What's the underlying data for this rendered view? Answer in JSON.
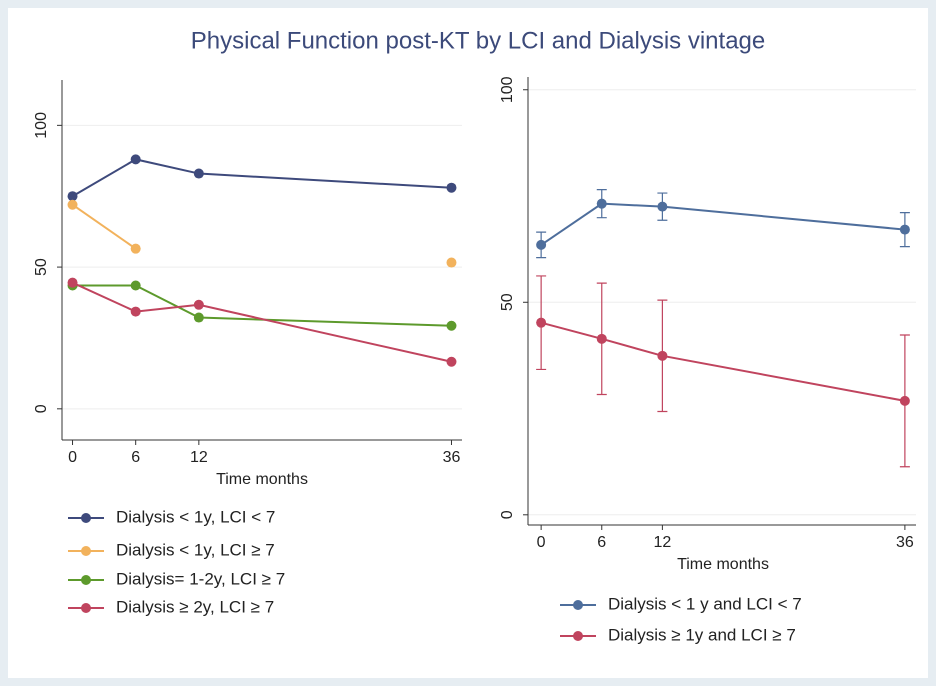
{
  "title": "Physical Function post-KT by LCI and Dialysis vintage",
  "chart_data": [
    {
      "type": "line",
      "x_label": "Time months",
      "x": [
        0,
        6,
        12,
        36
      ],
      "xlim": [
        -1,
        37
      ],
      "xticks": [
        0,
        6,
        12,
        36
      ],
      "ylim": [
        -11,
        116
      ],
      "yticks": [
        0,
        50,
        100
      ],
      "grid": true,
      "series": [
        {
          "name": "Dialysis < 1y, LCI < 7",
          "color": "#3e4a7c",
          "values": [
            75,
            88,
            83,
            78
          ]
        },
        {
          "name": "Dialysis < 1y, LCI ≥ 7",
          "color": "#f2b25c",
          "values": [
            72,
            56.5,
            null,
            51.6
          ]
        },
        {
          "name": "Dialysis= 1-2y, LCI ≥ 7",
          "color": "#5d9a2c",
          "values": [
            43.5,
            43.5,
            32.2,
            29.3
          ]
        },
        {
          "name": "Dialysis ≥ 2y, LCI ≥ 7",
          "color": "#c0445e",
          "values": [
            44.5,
            34.3,
            36.7,
            16.6
          ]
        }
      ]
    },
    {
      "type": "errorbar",
      "x_label": "Time months",
      "x": [
        0,
        6,
        12,
        36
      ],
      "xlim": [
        -1.3,
        37.1
      ],
      "xticks": [
        0,
        6,
        12,
        36
      ],
      "ylim": [
        -2.4,
        103
      ],
      "yticks": [
        0,
        50,
        100
      ],
      "grid": true,
      "series": [
        {
          "name": "Dialysis < 1 y and LCI < 7",
          "color": "#4e6e9c",
          "values": [
            63.5,
            73.2,
            72.5,
            67.1
          ],
          "errors": [
            3,
            3.3,
            3.2,
            4
          ]
        },
        {
          "name": "Dialysis ≥ 1y and LCI ≥ 7",
          "color": "#c0445e",
          "values": [
            45.2,
            41.4,
            37.4,
            26.8
          ],
          "errors": [
            11,
            13.1,
            13.1,
            15.5
          ]
        }
      ]
    }
  ]
}
